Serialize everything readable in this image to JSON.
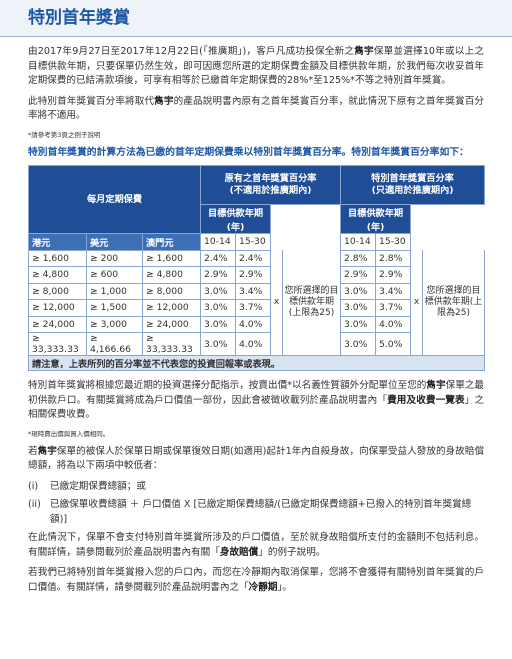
{
  "header": {
    "title": "特別首年獎賞"
  },
  "intro": [
    [
      "由2017年9月27日至2017年12月22日(「推廣期」)，客戶凡成功投保全新之",
      {
        "text": "雋宇",
        "bold": true
      },
      "保單並選擇10年或以上之目標供款年期，只要保單仍然生效，即可因應您所選的定期保費金額及目標供款年期，於我們每次收妥首年定期保費的已結清款項後，可享有相等於已繳首年定期保費的28%*至125%*不等之特別首年獎賞。"
    ],
    [
      "此特別首年獎賞百分率將取代",
      {
        "text": "雋宇",
        "bold": true
      },
      "的產品說明書內原有之首年獎賞百分率，就此情況下原有之首年獎賞百分率將不適用。"
    ]
  ],
  "intro_note": "*請參考第3頁之例子說明",
  "formula_heading": "特別首年獎賞的計算方法為已繳的首年定期保費乘以特別首年獎賞百分率。特別首年獎賞百分率如下：",
  "table": {
    "premium_header": "每月定期保費",
    "currencies": [
      "港元",
      "美元",
      "澳門元"
    ],
    "original": {
      "title": "原有之首年獎賞百分率",
      "note": "(不適用於推廣期內)",
      "term": "目標供款年期(年)",
      "bands": [
        "10-14",
        "15-30"
      ],
      "multiplier": "x",
      "term_note": "您所選擇的目標供款年期(上限為25)"
    },
    "special": {
      "title": "特別首年獎賞百分率",
      "note": "(只適用於推廣期內)",
      "term": "目標供款年期(年)",
      "bands": [
        "10-14",
        "15-30"
      ],
      "multiplier": "x",
      "term_note": "您所選擇的目標供款年期(上限為25)"
    },
    "rows": [
      [
        "≥ 1,600",
        "≥ 200",
        "≥ 1,600",
        "2.4%",
        "2.4%",
        "2.8%",
        "2.8%"
      ],
      [
        "≥ 4,800",
        "≥ 600",
        "≥ 4,800",
        "2.9%",
        "2.9%",
        "2.9%",
        "2.9%"
      ],
      [
        "≥ 8,000",
        "≥ 1,000",
        "≥ 8,000",
        "3.0%",
        "3.4%",
        "3.0%",
        "3.4%"
      ],
      [
        "≥ 12,000",
        "≥ 1,500",
        "≥ 12,000",
        "3.0%",
        "3.7%",
        "3.0%",
        "3.7%"
      ],
      [
        "≥ 24,000",
        "≥ 3,000",
        "≥ 24,000",
        "3.0%",
        "4.0%",
        "3.0%",
        "4.0%"
      ],
      [
        "≥ 33,333.33",
        "≥ 4,166.66",
        "≥ 33,333.33",
        "3.0%",
        "4.0%",
        "3.0%",
        "5.0%"
      ]
    ],
    "disclaimer": "請注意，上表所列的百分率並不代表您的投資回報率或表現。"
  },
  "allocation": [
    "特別首年獎賞將根據您最近期的投資選擇分配指示，按賣出價*以名義性質額外分配單位至您的",
    {
      "text": "雋宇",
      "bold": true
    },
    "保單之最初供款戶口。有關獎賞將成為戶口價值一部份，因此會被徵收載列於產品說明書內「",
    {
      "text": "費用及收費一覽表",
      "bold": true
    },
    "」之相關保費收費。"
  ],
  "allocation_note": "*現時賣出價與買入價相同。",
  "suicide": [
    "若",
    {
      "text": "雋宇",
      "bold": true
    },
    "保單的被保人於保單日期或保單復效日期(如適用)起計1年內自殺身故，向保單受益人發放的身故賠償總額，將為以下兩項中較低者："
  ],
  "options": [
    {
      "marker": "(i)",
      "text": "已繳定期保費總額；或"
    },
    {
      "marker": "(ii)",
      "text": "已繳保單收費總額 ＋ 戶口價值 X [已繳定期保費總額/(已繳定期保費總額+已撥入的特別首年獎賞總額)]"
    }
  ],
  "suicide_detail": [
    "在此情況下，保單不會支付特別首年獎賞所涉及的戶口價值，至於就身故賠償所支付的金額則不包括利息。有關詳情，請參閱載列於產品說明書內有關「",
    {
      "text": "身故賠償",
      "bold": true
    },
    "」的例子說明。"
  ],
  "cooling_off": [
    "若我們已將特別首年獎賞撥入您的戶口內，而您在冷靜期內取消保單，您將不會獲得有關特別首年獎賞的戶口價值。有關詳情，請參閱載列於產品說明書內之「",
    {
      "text": "冷靜期",
      "bold": true
    },
    "」。"
  ]
}
